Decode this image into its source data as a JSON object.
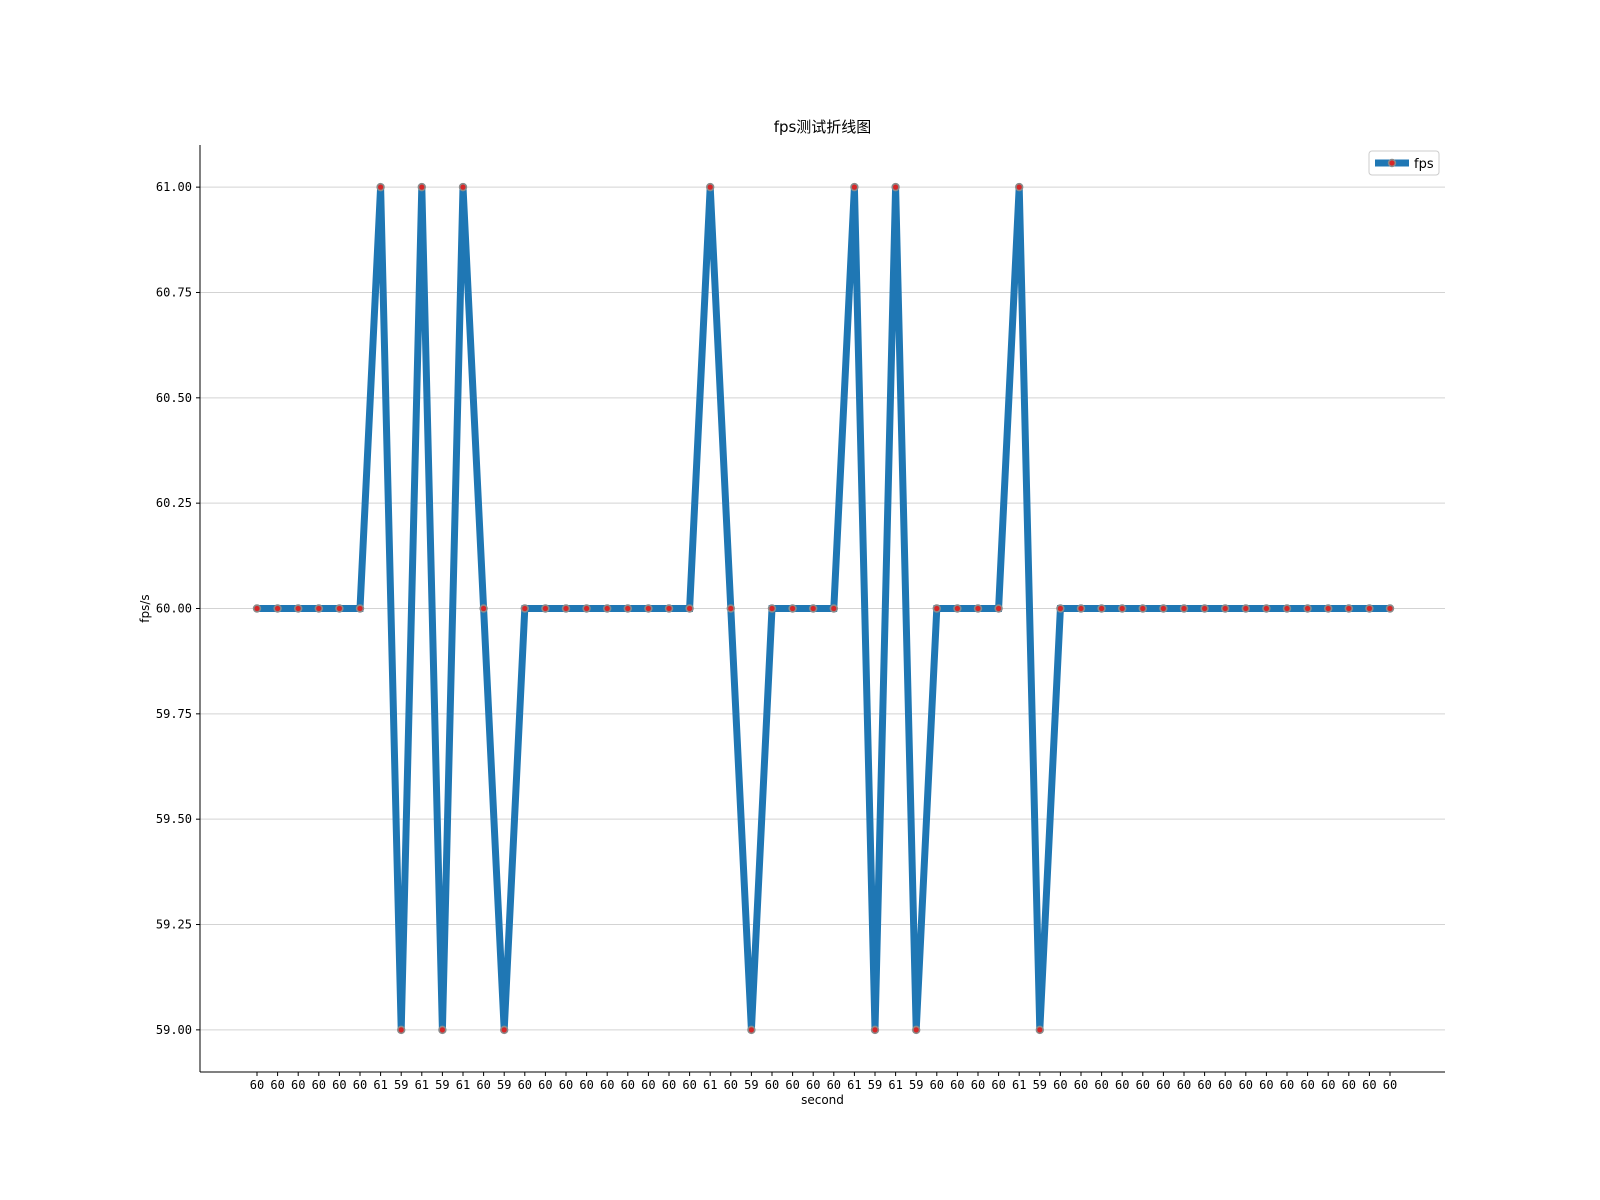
{
  "chart_data": {
    "type": "line",
    "title": "fps测试折线图",
    "xlabel": "second",
    "ylabel": "fps/s",
    "ylim": [
      58.9,
      61.1
    ],
    "yticks": [
      "59.00",
      "59.25",
      "59.50",
      "59.75",
      "60.00",
      "60.25",
      "60.50",
      "60.75",
      "61.00"
    ],
    "ytick_values": [
      59.0,
      59.25,
      59.5,
      59.75,
      60.0,
      60.25,
      60.5,
      60.75,
      61.0
    ],
    "grid": "horizontal",
    "legend_position": "top-right",
    "categories": [
      "60",
      "60",
      "60",
      "60",
      "60",
      "60",
      "61",
      "59",
      "61",
      "59",
      "61",
      "60",
      "59",
      "60",
      "60",
      "60",
      "60",
      "60",
      "60",
      "60",
      "60",
      "60",
      "61",
      "60",
      "59",
      "60",
      "60",
      "60",
      "60",
      "61",
      "59",
      "61",
      "59",
      "60",
      "60",
      "60",
      "60",
      "61",
      "59",
      "60",
      "60",
      "60",
      "60",
      "60",
      "60",
      "60",
      "60",
      "60",
      "60",
      "60",
      "60",
      "60",
      "60",
      "60",
      "60",
      "60"
    ],
    "series": [
      {
        "name": "fps",
        "color": "#1f77b4",
        "marker_color": "#d62728",
        "values": [
          60,
          60,
          60,
          60,
          60,
          60,
          61,
          59,
          61,
          59,
          61,
          60,
          59,
          60,
          60,
          60,
          60,
          60,
          60,
          60,
          60,
          60,
          61,
          60,
          59,
          60,
          60,
          60,
          60,
          61,
          59,
          61,
          59,
          60,
          60,
          60,
          60,
          61,
          59,
          60,
          60,
          60,
          60,
          60,
          60,
          60,
          60,
          60,
          60,
          60,
          60,
          60,
          60,
          60,
          60,
          60
        ]
      }
    ]
  }
}
